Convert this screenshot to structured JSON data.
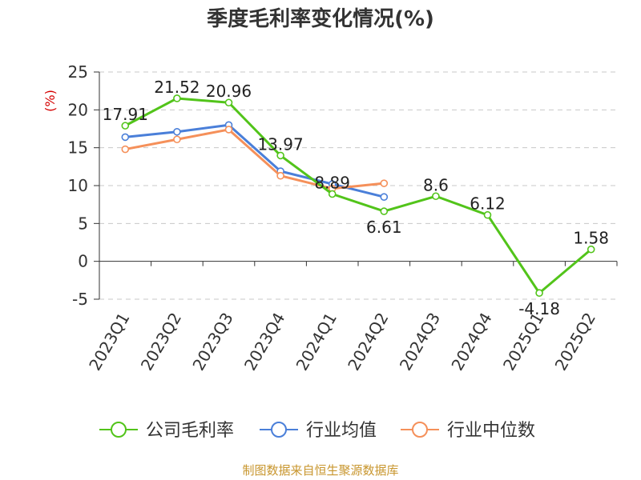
{
  "chart_data": {
    "type": "line",
    "title": "季度毛利率变化情况(%)",
    "ylabel": "(%)",
    "xlabel": "",
    "categories": [
      "2023Q1",
      "2023Q2",
      "2023Q3",
      "2023Q4",
      "2024Q1",
      "2024Q2",
      "2024Q3",
      "2024Q4",
      "2025Q1",
      "2025Q2"
    ],
    "yticks": [
      "25",
      "20",
      "15",
      "10",
      "5",
      "0",
      "-5"
    ],
    "ylim": [
      -5,
      25
    ],
    "grid": true,
    "legend_position": "bottom",
    "series": [
      {
        "name": "公司毛利率",
        "color": "#52c41a",
        "values": [
          17.91,
          21.52,
          20.96,
          13.97,
          8.89,
          6.61,
          8.6,
          6.12,
          -4.18,
          1.58
        ],
        "labels": [
          "17.91",
          "21.52",
          "20.96",
          "13.97",
          "8.89",
          "6.61",
          "8.6",
          "6.12",
          "-4.18",
          "1.58"
        ]
      },
      {
        "name": "行业均值",
        "color": "#4a7fd9",
        "values": [
          16.4,
          17.1,
          18.0,
          11.9,
          10.2,
          8.5,
          null,
          null,
          null,
          null
        ]
      },
      {
        "name": "行业中位数",
        "color": "#f5905a",
        "values": [
          14.8,
          16.1,
          17.4,
          11.3,
          9.6,
          10.3,
          null,
          null,
          null,
          null
        ]
      }
    ]
  },
  "source_text": "制图数据来自恒生聚源数据库"
}
